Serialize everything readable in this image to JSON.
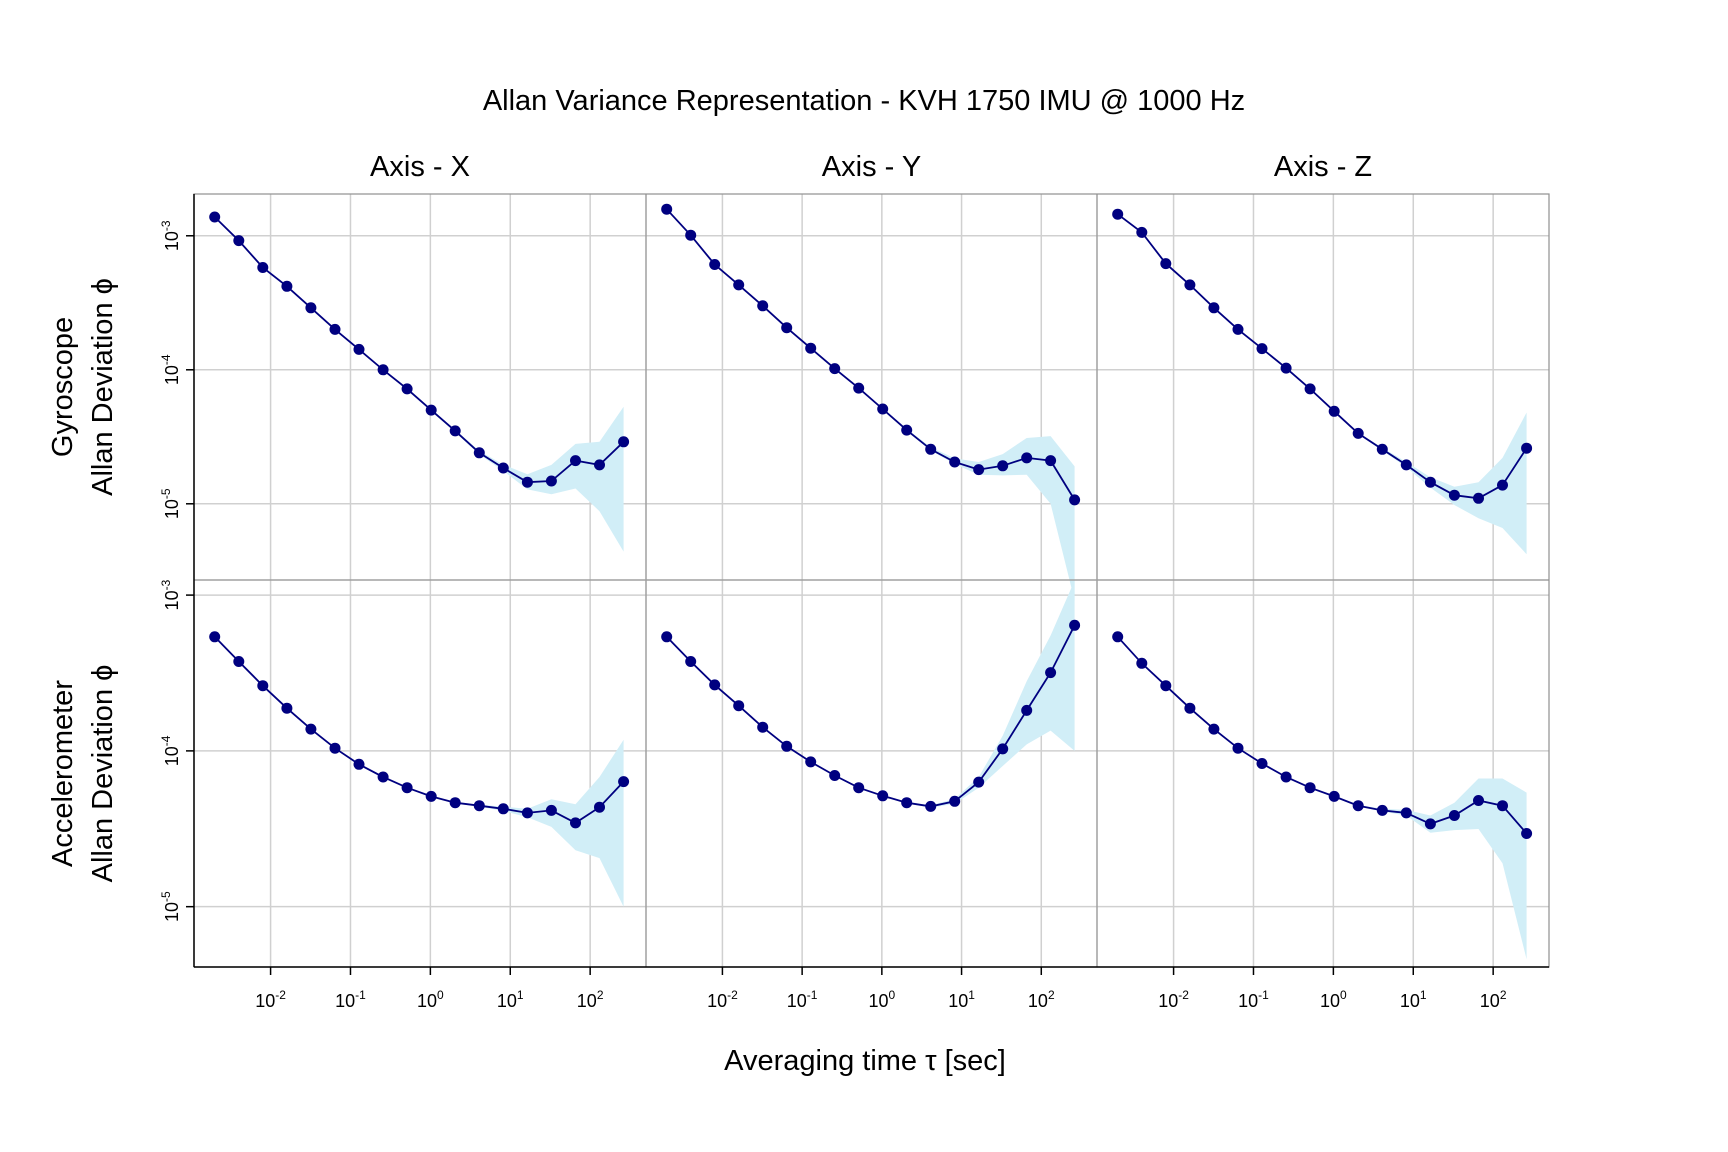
{
  "chart_data": {
    "type": "line",
    "title": "Allan Variance Representation - KVH 1750 IMU @ 1000 Hz",
    "xlabel": "Averaging time τ [sec]",
    "x_scale": "log",
    "y_scale": "log",
    "grid": true,
    "band_color": "#d1eef7",
    "line_color": "#000080",
    "point_color": "#000080",
    "grid_color": "#d0d0d0",
    "columns": [
      "Axis - X",
      "Axis - Y",
      "Axis - Z"
    ],
    "rows": [
      {
        "label_lines": [
          "Gyroscope",
          "Allan Deviation ϕ"
        ],
        "y_ticks": [
          {
            "base": "10",
            "exp": "-3",
            "value": 0.001
          },
          {
            "base": "10",
            "exp": "-4",
            "value": 0.0001
          },
          {
            "base": "10",
            "exp": "-5",
            "value": 1e-05
          }
        ]
      },
      {
        "label_lines": [
          "Accelerometer",
          "Allan Deviation ϕ"
        ],
        "y_ticks": [
          {
            "base": "10",
            "exp": "-3",
            "value": 0.001
          },
          {
            "base": "10",
            "exp": "-4",
            "value": 0.0001
          },
          {
            "base": "10",
            "exp": "-5",
            "value": 1e-05
          }
        ]
      }
    ],
    "x_ticks": [
      {
        "base": "10",
        "exp": "-2",
        "value": 0.01
      },
      {
        "base": "10",
        "exp": "-1",
        "value": 0.1
      },
      {
        "base": "10",
        "exp": "0",
        "value": 1
      },
      {
        "base": "10",
        "exp": "1",
        "value": 10
      },
      {
        "base": "10",
        "exp": "2",
        "value": 100
      }
    ],
    "x_range": [
      0.0011,
      500
    ],
    "y_ranges": [
      [
        2.7e-06,
        0.00205
      ],
      [
        4.1e-06,
        0.00125
      ]
    ],
    "x": [
      0.002,
      0.004,
      0.008,
      0.016,
      0.032,
      0.064,
      0.128,
      0.256,
      0.512,
      1.024,
      2.048,
      4.096,
      8.192,
      16.384,
      32.768,
      65.536,
      131.072,
      262.144
    ],
    "panels": [
      {
        "row": 0,
        "col": 0,
        "y": [
          0.00138,
          0.00092,
          0.00058,
          0.00042,
          0.00029,
          0.0002,
          0.000142,
          0.0001,
          7.2e-05,
          5e-05,
          3.5e-05,
          2.4e-05,
          1.85e-05,
          1.45e-05,
          1.48e-05,
          2.1e-05,
          1.95e-05,
          2.9e-05
        ],
        "lower": [
          0.00137,
          0.00091,
          0.000575,
          0.000416,
          0.000287,
          0.000198,
          0.00014,
          9.9e-05,
          7.05e-05,
          4.9e-05,
          3.42e-05,
          2.33e-05,
          1.76e-05,
          1.28e-05,
          1.18e-05,
          1.3e-05,
          8.8e-06,
          4.4e-06
        ],
        "upper": [
          0.00139,
          0.00093,
          0.000585,
          0.000424,
          0.000293,
          0.000202,
          0.000144,
          0.000101,
          7.35e-05,
          5.1e-05,
          3.58e-05,
          2.48e-05,
          1.96e-05,
          1.66e-05,
          1.95e-05,
          2.8e-05,
          2.9e-05,
          5.3e-05
        ]
      },
      {
        "row": 0,
        "col": 1,
        "y": [
          0.00158,
          0.00101,
          0.00061,
          0.00043,
          0.0003,
          0.000206,
          0.000145,
          0.000102,
          7.3e-05,
          5.1e-05,
          3.55e-05,
          2.55e-05,
          2.05e-05,
          1.8e-05,
          1.92e-05,
          2.2e-05,
          2.1e-05,
          1.07e-05
        ],
        "lower": [
          0.00157,
          0.001,
          0.000605,
          0.000426,
          0.000297,
          0.000204,
          0.000143,
          0.0001,
          7.22e-05,
          5.02e-05,
          3.48e-05,
          2.5e-05,
          1.98e-05,
          1.65e-05,
          1.63e-05,
          1.65e-05,
          1e-05,
          1.9e-06
        ],
        "upper": [
          0.00159,
          0.00102,
          0.000615,
          0.000434,
          0.000303,
          0.000208,
          0.000147,
          0.000104,
          7.38e-05,
          5.18e-05,
          3.62e-05,
          2.65e-05,
          2.18e-05,
          2.05e-05,
          2.35e-05,
          3.1e-05,
          3.2e-05,
          1.9e-05
        ]
      },
      {
        "row": 0,
        "col": 2,
        "y": [
          0.00145,
          0.00106,
          0.00062,
          0.00043,
          0.00029,
          0.0002,
          0.000144,
          0.000103,
          7.2e-05,
          4.9e-05,
          3.35e-05,
          2.55e-05,
          1.95e-05,
          1.45e-05,
          1.16e-05,
          1.1e-05,
          1.38e-05,
          2.6e-05
        ],
        "lower": [
          0.00144,
          0.00105,
          0.000615,
          0.000426,
          0.000287,
          0.000198,
          0.000142,
          0.000101,
          7.12e-05,
          4.84e-05,
          3.3e-05,
          2.49e-05,
          1.88e-05,
          1.32e-05,
          9.8e-06,
          7.8e-06,
          6.6e-06,
          4.2e-06
        ],
        "upper": [
          0.00146,
          0.00107,
          0.000625,
          0.000434,
          0.000293,
          0.000202,
          0.000146,
          0.000105,
          7.28e-05,
          4.96e-05,
          3.4e-05,
          2.62e-05,
          2.05e-05,
          1.58e-05,
          1.34e-05,
          1.45e-05,
          2.2e-05,
          4.8e-05
        ]
      },
      {
        "row": 1,
        "col": 0,
        "y": [
          0.00054,
          0.000375,
          0.000262,
          0.000188,
          0.000138,
          0.000104,
          8.2e-05,
          6.8e-05,
          5.8e-05,
          5.1e-05,
          4.65e-05,
          4.45e-05,
          4.25e-05,
          4e-05,
          4.15e-05,
          3.45e-05,
          4.35e-05,
          6.35e-05
        ],
        "lower": [
          0.000535,
          0.000371,
          0.00026,
          0.000187,
          0.000137,
          0.000103,
          8.14e-05,
          6.74e-05,
          5.75e-05,
          5.05e-05,
          4.6e-05,
          4.38e-05,
          4.12e-05,
          3.75e-05,
          3.25e-05,
          2.3e-05,
          2.05e-05,
          1e-05
        ],
        "upper": [
          0.000545,
          0.000379,
          0.000264,
          0.000189,
          0.000139,
          0.000105,
          8.26e-05,
          6.86e-05,
          5.85e-05,
          5.15e-05,
          4.7e-05,
          4.52e-05,
          4.38e-05,
          4.25e-05,
          4.9e-05,
          4.55e-05,
          6.8e-05,
          0.000118
        ]
      },
      {
        "row": 1,
        "col": 1,
        "y": [
          0.00054,
          0.000375,
          0.000265,
          0.000195,
          0.000142,
          0.000107,
          8.5e-05,
          6.95e-05,
          5.8e-05,
          5.15e-05,
          4.65e-05,
          4.4e-05,
          4.75e-05,
          6.3e-05,
          0.000103,
          0.000182,
          0.000318,
          0.00064
        ],
        "lower": [
          0.000535,
          0.000371,
          0.000263,
          0.000193,
          0.000141,
          0.000106,
          8.44e-05,
          6.9e-05,
          5.75e-05,
          5.1e-05,
          4.6e-05,
          4.32e-05,
          4.58e-05,
          5.8e-05,
          8e-05,
          0.00011,
          0.000135,
          0.0001
        ],
        "upper": [
          0.000545,
          0.000379,
          0.000267,
          0.000197,
          0.000143,
          0.000108,
          8.56e-05,
          7e-05,
          5.85e-05,
          5.2e-05,
          4.7e-05,
          4.48e-05,
          4.92e-05,
          6.8e-05,
          0.000125,
          0.00028,
          0.00055,
          0.00124
        ]
      },
      {
        "row": 1,
        "col": 2,
        "y": [
          0.00054,
          0.000365,
          0.000262,
          0.000188,
          0.000138,
          0.000104,
          8.3e-05,
          6.8e-05,
          5.8e-05,
          5.1e-05,
          4.45e-05,
          4.15e-05,
          4e-05,
          3.4e-05,
          3.85e-05,
          4.8e-05,
          4.45e-05,
          2.95e-05
        ],
        "lower": [
          0.000535,
          0.000361,
          0.00026,
          0.000187,
          0.000137,
          0.000103,
          8.24e-05,
          6.74e-05,
          5.75e-05,
          5.05e-05,
          4.4e-05,
          4.08e-05,
          3.85e-05,
          2.98e-05,
          3.1e-05,
          3.15e-05,
          1.9e-05,
          4.6e-06
        ],
        "upper": [
          0.000545,
          0.000369,
          0.000264,
          0.000189,
          0.000139,
          0.000105,
          8.36e-05,
          6.86e-05,
          5.85e-05,
          5.15e-05,
          4.5e-05,
          4.25e-05,
          4.18e-05,
          3.85e-05,
          4.65e-05,
          6.65e-05,
          6.65e-05,
          5.4e-05
        ]
      }
    ]
  }
}
